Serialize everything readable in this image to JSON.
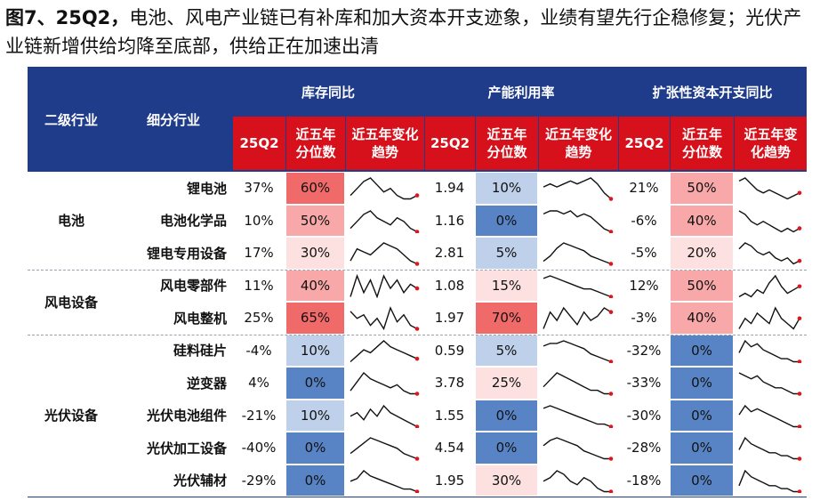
{
  "figure": {
    "title_prefix": "图7、25Q2，",
    "title_rest": "电池、风电产业链已有补库和加大资本开支迹象，业绩有望先行企稳修复；光伏产业链新增供给均降至底部，供给正在加速出清"
  },
  "header": {
    "col_level2": "二级行业",
    "col_sub": "细分行业",
    "group_inventory": "库存同比",
    "group_capacity": "产能利用率",
    "group_capex": "扩张性资本开支同比",
    "sub_q": "25Q2",
    "sub_pct": "近五年分位数",
    "sub_trend": "近五年变化趋势"
  },
  "colors": {
    "header_blue": "#1f3c8a",
    "header_red": "#d7111b",
    "high": "#f16a6a",
    "mid": "#f8a8a8",
    "low": "#fde0e0",
    "blue_low": "#bfd0ea",
    "blue": "#5884c6",
    "spark_line": "#111111",
    "spark_end": "#e0161f"
  },
  "groups": [
    {
      "name": "电池",
      "rows": [
        0,
        1,
        2
      ]
    },
    {
      "name": "风电设备",
      "rows": [
        3,
        4
      ]
    },
    {
      "name": "光伏设备",
      "rows": [
        5,
        6,
        7,
        8,
        9
      ]
    }
  ],
  "rows": [
    {
      "sub": "锂电池",
      "inv": {
        "q": "37%",
        "pct": "60%",
        "pct_value": 60,
        "trend": [
          3,
          5,
          7,
          8,
          6,
          4,
          5,
          3,
          2,
          2,
          3
        ]
      },
      "cap": {
        "q": "1.94",
        "pct": "10%",
        "pct_value": 10,
        "trend": [
          5,
          6,
          5,
          6,
          7,
          6,
          7,
          8,
          6,
          3,
          1
        ]
      },
      "capex": {
        "q": "21%",
        "pct": "50%",
        "pct_value": 50,
        "trend": [
          8,
          9,
          7,
          5,
          4,
          5,
          4,
          3,
          2,
          3,
          4
        ]
      }
    },
    {
      "sub": "电池化学品",
      "inv": {
        "q": "10%",
        "pct": "50%",
        "pct_value": 50,
        "trend": [
          4,
          6,
          8,
          9,
          7,
          6,
          5,
          7,
          6,
          4,
          3
        ]
      },
      "cap": {
        "q": "1.16",
        "pct": "0%",
        "pct_value": 0,
        "trend": [
          7,
          8,
          8,
          7,
          8,
          6,
          7,
          6,
          4,
          2,
          1
        ]
      },
      "capex": {
        "q": "-6%",
        "pct": "40%",
        "pct_value": 40,
        "trend": [
          8,
          7,
          5,
          4,
          5,
          4,
          3,
          2,
          3,
          2,
          3
        ]
      }
    },
    {
      "sub": "锂电专用设备",
      "inv": {
        "q": "17%",
        "pct": "30%",
        "pct_value": 30,
        "trend": [
          2,
          6,
          5,
          4,
          6,
          8,
          7,
          6,
          4,
          2,
          1
        ]
      },
      "cap": {
        "q": "2.81",
        "pct": "5%",
        "pct_value": 5,
        "trend": [
          2,
          4,
          7,
          9,
          8,
          7,
          6,
          4,
          3,
          2,
          1
        ]
      },
      "capex": {
        "q": "-5%",
        "pct": "20%",
        "pct_value": 20,
        "trend": [
          6,
          8,
          7,
          5,
          4,
          5,
          3,
          2,
          3,
          1,
          2
        ]
      }
    },
    {
      "sub": "风电零部件",
      "inv": {
        "q": "11%",
        "pct": "40%",
        "pct_value": 40,
        "trend": [
          4,
          9,
          5,
          8,
          4,
          9,
          6,
          8,
          5,
          7,
          6
        ]
      },
      "cap": {
        "q": "1.08",
        "pct": "15%",
        "pct_value": 15,
        "trend": [
          8,
          9,
          8,
          7,
          6,
          5,
          4,
          4,
          3,
          2,
          1
        ]
      },
      "capex": {
        "q": "12%",
        "pct": "50%",
        "pct_value": 50,
        "trend": [
          3,
          4,
          3,
          5,
          4,
          7,
          9,
          6,
          4,
          5,
          6
        ]
      }
    },
    {
      "sub": "风电整机",
      "inv": {
        "q": "25%",
        "pct": "65%",
        "pct_value": 65,
        "trend": [
          8,
          6,
          7,
          4,
          6,
          3,
          9,
          5,
          7,
          4,
          3
        ]
      },
      "cap": {
        "q": "1.97",
        "pct": "70%",
        "pct_value": 70,
        "trend": [
          2,
          6,
          4,
          7,
          5,
          3,
          6,
          4,
          5,
          7,
          6
        ]
      },
      "capex": {
        "q": "-3%",
        "pct": "40%",
        "pct_value": 40,
        "trend": [
          3,
          5,
          4,
          6,
          5,
          4,
          7,
          5,
          4,
          3,
          5
        ]
      }
    },
    {
      "sub": "硅料硅片",
      "inv": {
        "q": "-4%",
        "pct": "10%",
        "pct_value": 10,
        "trend": [
          2,
          4,
          6,
          5,
          7,
          9,
          7,
          6,
          5,
          4,
          3
        ]
      },
      "cap": {
        "q": "0.59",
        "pct": "5%",
        "pct_value": 5,
        "trend": [
          7,
          8,
          8,
          9,
          8,
          7,
          6,
          4,
          3,
          2,
          1
        ]
      },
      "capex": {
        "q": "-32%",
        "pct": "0%",
        "pct_value": 0,
        "trend": [
          4,
          8,
          6,
          7,
          5,
          4,
          3,
          2,
          2,
          1,
          1
        ]
      }
    },
    {
      "sub": "逆变器",
      "inv": {
        "q": "4%",
        "pct": "0%",
        "pct_value": 0,
        "trend": [
          3,
          6,
          9,
          7,
          6,
          5,
          4,
          5,
          3,
          2,
          2
        ]
      },
      "cap": {
        "q": "3.78",
        "pct": "25%",
        "pct_value": 25,
        "trend": [
          5,
          7,
          9,
          8,
          7,
          6,
          5,
          4,
          4,
          3,
          3
        ]
      },
      "capex": {
        "q": "-33%",
        "pct": "0%",
        "pct_value": 0,
        "trend": [
          8,
          7,
          6,
          7,
          5,
          4,
          3,
          3,
          2,
          1,
          1
        ]
      }
    },
    {
      "sub": "光伏电池组件",
      "inv": {
        "q": "-21%",
        "pct": "10%",
        "pct_value": 10,
        "trend": [
          6,
          7,
          5,
          8,
          6,
          9,
          7,
          6,
          5,
          4,
          3
        ]
      },
      "cap": {
        "q": "1.55",
        "pct": "0%",
        "pct_value": 0,
        "trend": [
          8,
          9,
          8,
          7,
          6,
          5,
          4,
          3,
          2,
          2,
          1
        ]
      },
      "capex": {
        "q": "-30%",
        "pct": "0%",
        "pct_value": 0,
        "trend": [
          5,
          8,
          6,
          7,
          6,
          5,
          4,
          3,
          2,
          1,
          1
        ]
      }
    },
    {
      "sub": "光伏加工设备",
      "inv": {
        "q": "-40%",
        "pct": "0%",
        "pct_value": 0,
        "trend": [
          3,
          5,
          7,
          9,
          8,
          7,
          6,
          5,
          3,
          2,
          1
        ]
      },
      "cap": {
        "q": "4.54",
        "pct": "0%",
        "pct_value": 0,
        "trend": [
          6,
          8,
          9,
          8,
          7,
          6,
          4,
          3,
          2,
          1,
          1
        ]
      },
      "capex": {
        "q": "-28%",
        "pct": "0%",
        "pct_value": 0,
        "trend": [
          4,
          8,
          6,
          5,
          4,
          3,
          3,
          2,
          2,
          1,
          1
        ]
      }
    },
    {
      "sub": "光伏辅材",
      "inv": {
        "q": "-29%",
        "pct": "0%",
        "pct_value": 0,
        "trend": [
          5,
          6,
          9,
          7,
          6,
          5,
          4,
          3,
          2,
          2,
          1
        ]
      },
      "cap": {
        "q": "1.95",
        "pct": "30%",
        "pct_value": 30,
        "trend": [
          5,
          6,
          8,
          7,
          5,
          4,
          6,
          5,
          3,
          2,
          2
        ]
      },
      "capex": {
        "q": "-18%",
        "pct": "0%",
        "pct_value": 0,
        "trend": [
          3,
          8,
          6,
          5,
          4,
          3,
          3,
          2,
          2,
          1,
          1
        ]
      }
    }
  ]
}
